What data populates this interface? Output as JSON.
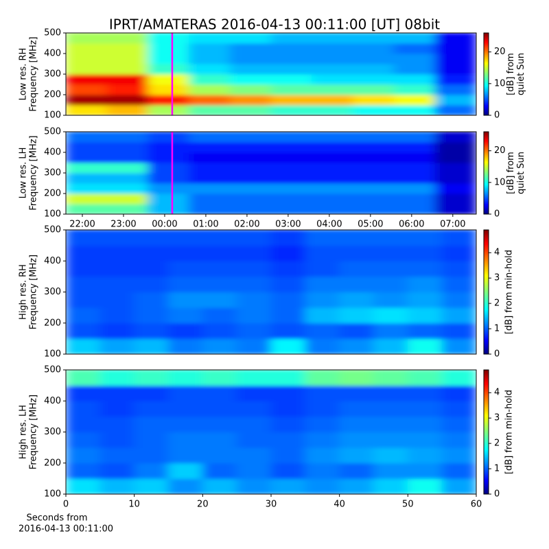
{
  "chart_data": [
    {
      "type": "heatmap",
      "title": "IPRT/AMATERAS 2016-04-13 00:11:00 [UT]   08bit",
      "ylabel": [
        "Low res. RH",
        "Frequency [MHz]"
      ],
      "xlim": [
        -2.4,
        7.57
      ],
      "ylim": [
        100,
        500
      ],
      "yticks": [
        100,
        200,
        300,
        400,
        500
      ],
      "colormap": "jet",
      "clim": [
        0,
        26
      ],
      "cticks": [
        0,
        10,
        20
      ],
      "colorbar_label": [
        "[dB] from",
        "quiet Sun"
      ],
      "marker_x": 0.1833,
      "marker_color": "#ff00ff",
      "z": [
        [
          17,
          18,
          14,
          12,
          12,
          11,
          11,
          10,
          10,
          6
        ],
        [
          25,
          25,
          22,
          20,
          19,
          18,
          18,
          17,
          16,
          8
        ],
        [
          21,
          22,
          17,
          14,
          13,
          12,
          12,
          12,
          11,
          6
        ],
        [
          23,
          23,
          16,
          11,
          10,
          10,
          9,
          9,
          9,
          4
        ],
        [
          15,
          15,
          11,
          9,
          8,
          8,
          8,
          8,
          7,
          3
        ],
        [
          15,
          15,
          10,
          8,
          7,
          7,
          7,
          7,
          7,
          3
        ],
        [
          15,
          15,
          10,
          8,
          7,
          7,
          7,
          7,
          6,
          3
        ],
        [
          14,
          14,
          10,
          9,
          9,
          8,
          8,
          8,
          8,
          3
        ]
      ]
    },
    {
      "type": "heatmap",
      "ylabel": [
        "Low res. LH",
        "Frequency [MHz]"
      ],
      "xlim": [
        -2.4,
        7.57
      ],
      "ylim": [
        100,
        500
      ],
      "yticks": [
        100,
        200,
        300,
        400,
        500
      ],
      "xticks": [
        {
          "value": -2,
          "label": "22:00"
        },
        {
          "value": -1,
          "label": "23:00"
        },
        {
          "value": 0,
          "label": "00:00"
        },
        {
          "value": 1,
          "label": "01:00"
        },
        {
          "value": 2,
          "label": "02:00"
        },
        {
          "value": 3,
          "label": "03:00"
        },
        {
          "value": 4,
          "label": "04:00"
        },
        {
          "value": 5,
          "label": "05:00"
        },
        {
          "value": 6,
          "label": "06:00"
        },
        {
          "value": 7,
          "label": "07:00"
        }
      ],
      "colormap": "jet",
      "clim": [
        0,
        26
      ],
      "cticks": [
        0,
        10,
        20
      ],
      "colorbar_label": [
        "[dB] from",
        "quiet Sun"
      ],
      "marker_x": 0.1833,
      "marker_color": "#ff00ff",
      "z": [
        [
          12,
          12,
          8,
          6,
          6,
          6,
          6,
          6,
          6,
          2
        ],
        [
          15,
          15,
          8,
          6,
          6,
          6,
          6,
          6,
          6,
          2
        ],
        [
          9,
          9,
          7,
          7,
          7,
          7,
          7,
          7,
          7,
          3
        ],
        [
          8,
          8,
          5,
          4,
          4,
          4,
          4,
          4,
          4,
          2
        ],
        [
          11,
          11,
          5,
          4,
          4,
          4,
          4,
          4,
          4,
          2
        ],
        [
          5,
          5,
          4,
          3,
          3,
          3,
          3,
          3,
          3,
          1
        ],
        [
          5,
          5,
          4,
          4,
          4,
          4,
          4,
          4,
          4,
          1
        ],
        [
          6,
          6,
          5,
          6,
          6,
          6,
          6,
          6,
          6,
          2
        ]
      ]
    },
    {
      "type": "heatmap",
      "ylabel": [
        "High res. RH",
        "Frequency [MHz]"
      ],
      "xlim": [
        0,
        60
      ],
      "ylim": [
        100,
        500
      ],
      "yticks": [
        100,
        200,
        300,
        400,
        500
      ],
      "colormap": "jet",
      "clim": [
        0,
        4.9
      ],
      "cticks": [
        0,
        1,
        2,
        3,
        4
      ],
      "colorbar_label": [
        "[dB] from min-hold"
      ],
      "z": [
        [
          1.6,
          1.4,
          1.5,
          1.2,
          1.3,
          1.2,
          1.8,
          1.2,
          1.3,
          1.5,
          1.9,
          1.3
        ],
        [
          1.0,
          0.9,
          1.0,
          0.9,
          1.0,
          1.1,
          1.0,
          1.1,
          1.0,
          1.2,
          1.1,
          1.0
        ],
        [
          1.1,
          1.0,
          1.1,
          1.2,
          1.1,
          1.2,
          1.1,
          1.5,
          1.6,
          1.7,
          1.6,
          1.4
        ],
        [
          1.0,
          1.0,
          1.1,
          1.3,
          1.3,
          1.2,
          1.1,
          1.3,
          1.4,
          1.3,
          1.4,
          1.2
        ],
        [
          1.0,
          1.0,
          1.0,
          1.1,
          1.1,
          1.1,
          1.0,
          1.2,
          1.2,
          1.2,
          1.3,
          1.1
        ],
        [
          0.9,
          0.9,
          0.9,
          1.0,
          1.0,
          1.0,
          0.9,
          1.0,
          1.1,
          1.1,
          1.1,
          1.0
        ],
        [
          0.9,
          0.9,
          0.9,
          0.9,
          0.9,
          0.9,
          0.8,
          1.0,
          1.0,
          1.0,
          1.0,
          0.9
        ],
        [
          1.0,
          1.0,
          1.0,
          1.0,
          1.0,
          1.0,
          0.9,
          1.1,
          1.1,
          1.1,
          1.1,
          1.0
        ]
      ]
    },
    {
      "type": "heatmap",
      "ylabel": [
        "High res. LH",
        "Frequency [MHz]"
      ],
      "xlim": [
        0,
        60
      ],
      "ylim": [
        100,
        500
      ],
      "yticks": [
        100,
        200,
        300,
        400,
        500
      ],
      "xticks": [
        0,
        10,
        20,
        30,
        40,
        50,
        60
      ],
      "xlabel": [
        "Seconds from",
        "2016-04-13 00:11:00"
      ],
      "colormap": "jet",
      "clim": [
        0,
        4.9
      ],
      "cticks": [
        0,
        1,
        2,
        3,
        4
      ],
      "colorbar_label": [
        "[dB] from min-hold"
      ],
      "z": [
        [
          1.7,
          1.5,
          1.6,
          1.3,
          1.5,
          1.3,
          1.4,
          1.3,
          1.4,
          1.6,
          1.9,
          1.4
        ],
        [
          1.1,
          1.0,
          1.2,
          1.6,
          1.1,
          1.2,
          1.0,
          1.2,
          1.1,
          1.3,
          1.3,
          1.1
        ],
        [
          1.2,
          1.1,
          1.1,
          1.2,
          1.2,
          1.2,
          1.1,
          1.3,
          1.4,
          1.5,
          1.4,
          1.3
        ],
        [
          1.1,
          1.0,
          1.1,
          1.2,
          1.2,
          1.1,
          1.1,
          1.2,
          1.3,
          1.3,
          1.3,
          1.2
        ],
        [
          1.0,
          1.0,
          1.1,
          1.1,
          1.1,
          1.1,
          1.0,
          1.1,
          1.2,
          1.2,
          1.2,
          1.1
        ],
        [
          1.0,
          0.9,
          1.0,
          1.0,
          1.0,
          1.0,
          0.9,
          1.0,
          1.1,
          1.1,
          1.1,
          1.0
        ],
        [
          0.9,
          0.9,
          0.9,
          1.0,
          1.0,
          0.9,
          0.9,
          1.0,
          1.0,
          1.0,
          1.0,
          0.9
        ],
        [
          2.2,
          2.0,
          2.1,
          2.0,
          2.1,
          2.0,
          2.0,
          2.3,
          2.4,
          2.3,
          2.2,
          2.0
        ]
      ]
    }
  ]
}
